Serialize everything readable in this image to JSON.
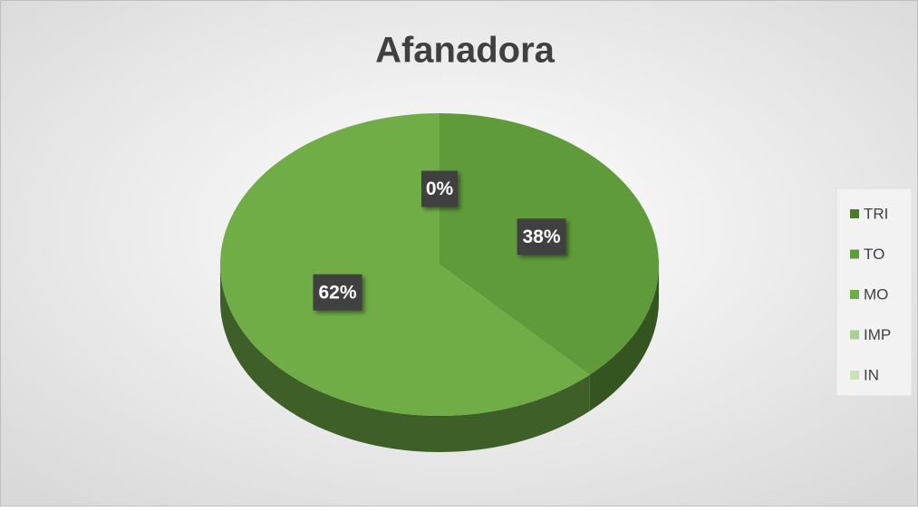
{
  "chart_data": {
    "type": "pie",
    "title": "Afanadora",
    "categories": [
      "TRI",
      "TO",
      "MO",
      "IMP",
      "IN"
    ],
    "values": [
      0,
      38,
      62,
      0,
      0
    ],
    "value_labels": [
      "0%",
      "38%",
      "62%",
      null,
      null
    ],
    "colors": [
      "#4e7a2e",
      "#5f9b3b",
      "#70ad47",
      "#a9d18e",
      "#c9e2b8"
    ],
    "legend": "right"
  }
}
